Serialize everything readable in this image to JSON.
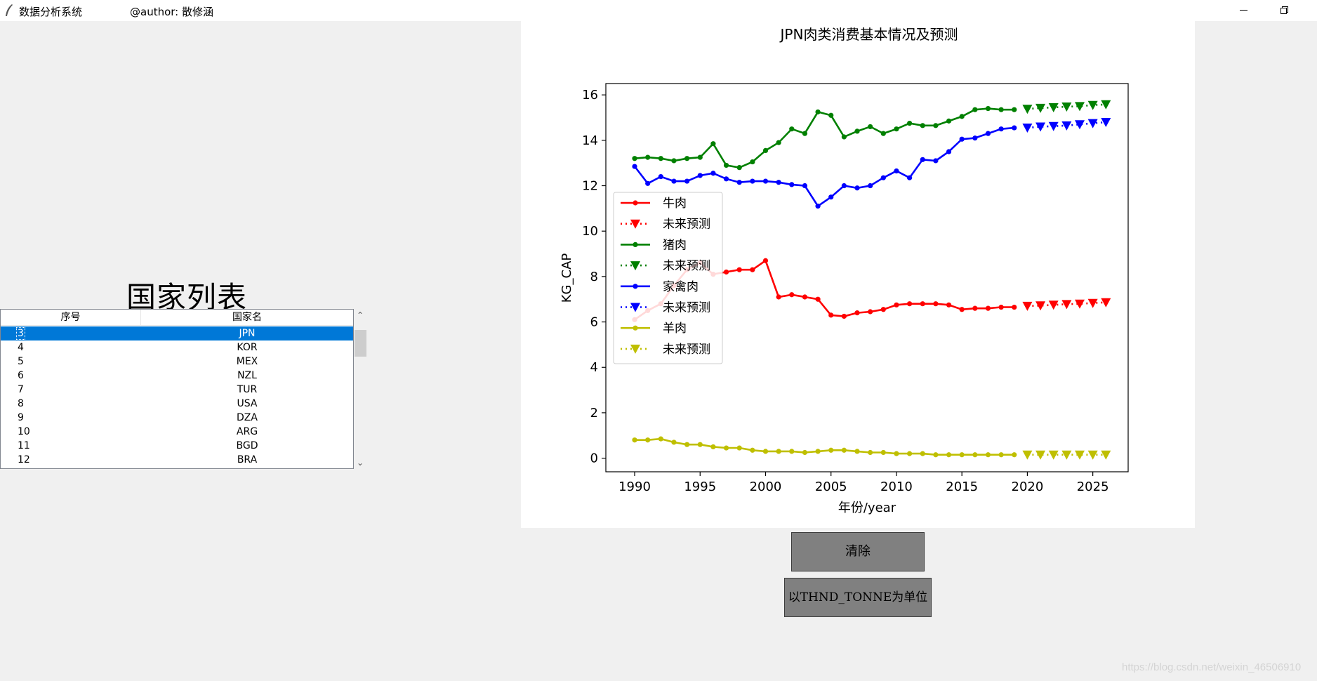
{
  "window": {
    "title": "数据分析系统",
    "author": "@author: 散修涵",
    "icon": "feather-icon"
  },
  "left": {
    "heading": "国家列表",
    "columns": [
      "序号",
      "国家名"
    ],
    "rows": [
      {
        "index": "3",
        "name": "JPN"
      },
      {
        "index": "4",
        "name": "KOR"
      },
      {
        "index": "5",
        "name": "MEX"
      },
      {
        "index": "6",
        "name": "NZL"
      },
      {
        "index": "7",
        "name": "TUR"
      },
      {
        "index": "8",
        "name": "USA"
      },
      {
        "index": "9",
        "name": "DZA"
      },
      {
        "index": "10",
        "name": "ARG"
      },
      {
        "index": "11",
        "name": "BGD"
      },
      {
        "index": "12",
        "name": "BRA"
      }
    ],
    "selected_index": "3",
    "selection_color": "#0078d7"
  },
  "buttons": {
    "clear": "清除",
    "unit": "以THND_TONNE为单位"
  },
  "watermark": "https://blog.csdn.net/weixin_46506910",
  "chart_data": {
    "type": "line",
    "title": "JPN肉类消费基本情况及预测",
    "xlabel": "年份/year",
    "ylabel": "KG_CAP",
    "xlim": [
      1987.8,
      2027.7
    ],
    "ylim": [
      -0.6,
      16.5
    ],
    "xticks": [
      1990,
      1995,
      2000,
      2005,
      2010,
      2015,
      2020,
      2025
    ],
    "yticks": [
      0,
      2,
      4,
      6,
      8,
      10,
      12,
      14,
      16
    ],
    "legend_position": "center-left",
    "grid": false,
    "series": [
      {
        "name": "牛肉",
        "kind": "actual",
        "color": "#ff0000",
        "x": [
          1990,
          1991,
          1992,
          1993,
          1994,
          1995,
          1996,
          1997,
          1998,
          1999,
          2000,
          2001,
          2002,
          2003,
          2004,
          2005,
          2006,
          2007,
          2008,
          2009,
          2010,
          2011,
          2012,
          2013,
          2014,
          2015,
          2016,
          2017,
          2018,
          2019
        ],
        "values": [
          6.1,
          6.5,
          6.8,
          7.6,
          8.3,
          8.6,
          8.1,
          8.2,
          8.3,
          8.3,
          8.7,
          7.1,
          7.2,
          7.1,
          7.0,
          6.3,
          6.25,
          6.4,
          6.45,
          6.55,
          6.75,
          6.8,
          6.8,
          6.8,
          6.75,
          6.55,
          6.6,
          6.6,
          6.65,
          6.65
        ]
      },
      {
        "name": "未来预测",
        "kind": "forecast",
        "color": "#ff0000",
        "x": [
          2020,
          2021,
          2022,
          2023,
          2024,
          2025,
          2026
        ],
        "values": [
          6.7,
          6.72,
          6.75,
          6.78,
          6.8,
          6.83,
          6.86
        ]
      },
      {
        "name": "猪肉",
        "kind": "actual",
        "color": "#008000",
        "x": [
          1990,
          1991,
          1992,
          1993,
          1994,
          1995,
          1996,
          1997,
          1998,
          1999,
          2000,
          2001,
          2002,
          2003,
          2004,
          2005,
          2006,
          2007,
          2008,
          2009,
          2010,
          2011,
          2012,
          2013,
          2014,
          2015,
          2016,
          2017,
          2018,
          2019
        ],
        "values": [
          13.2,
          13.25,
          13.2,
          13.1,
          13.2,
          13.25,
          13.85,
          12.9,
          12.8,
          13.05,
          13.55,
          13.9,
          14.5,
          14.3,
          15.25,
          15.1,
          14.15,
          14.4,
          14.6,
          14.3,
          14.5,
          14.75,
          14.65,
          14.65,
          14.85,
          15.05,
          15.35,
          15.4,
          15.35,
          15.35
        ]
      },
      {
        "name": "未来预测",
        "kind": "forecast",
        "color": "#008000",
        "x": [
          2020,
          2021,
          2022,
          2023,
          2024,
          2025,
          2026
        ],
        "values": [
          15.38,
          15.42,
          15.45,
          15.48,
          15.5,
          15.55,
          15.58
        ]
      },
      {
        "name": "家禽肉",
        "kind": "actual",
        "color": "#0000ff",
        "x": [
          1990,
          1991,
          1992,
          1993,
          1994,
          1995,
          1996,
          1997,
          1998,
          1999,
          2000,
          2001,
          2002,
          2003,
          2004,
          2005,
          2006,
          2007,
          2008,
          2009,
          2010,
          2011,
          2012,
          2013,
          2014,
          2015,
          2016,
          2017,
          2018,
          2019
        ],
        "values": [
          12.85,
          12.1,
          12.4,
          12.2,
          12.2,
          12.45,
          12.55,
          12.3,
          12.15,
          12.2,
          12.2,
          12.15,
          12.05,
          12.0,
          11.1,
          11.5,
          12.0,
          11.9,
          12.0,
          12.35,
          12.65,
          12.35,
          13.15,
          13.1,
          13.5,
          14.05,
          14.1,
          14.3,
          14.5,
          14.55
        ]
      },
      {
        "name": "未来预测",
        "kind": "forecast",
        "color": "#0000ff",
        "x": [
          2020,
          2021,
          2022,
          2023,
          2024,
          2025,
          2026
        ],
        "values": [
          14.55,
          14.6,
          14.62,
          14.65,
          14.7,
          14.75,
          14.8
        ]
      },
      {
        "name": "羊肉",
        "kind": "actual",
        "color": "#bfbf00",
        "x": [
          1990,
          1991,
          1992,
          1993,
          1994,
          1995,
          1996,
          1997,
          1998,
          1999,
          2000,
          2001,
          2002,
          2003,
          2004,
          2005,
          2006,
          2007,
          2008,
          2009,
          2010,
          2011,
          2012,
          2013,
          2014,
          2015,
          2016,
          2017,
          2018,
          2019
        ],
        "values": [
          0.8,
          0.8,
          0.85,
          0.7,
          0.6,
          0.6,
          0.5,
          0.45,
          0.45,
          0.35,
          0.3,
          0.3,
          0.3,
          0.25,
          0.3,
          0.35,
          0.35,
          0.3,
          0.25,
          0.25,
          0.2,
          0.2,
          0.2,
          0.15,
          0.15,
          0.15,
          0.15,
          0.15,
          0.15,
          0.15
        ]
      },
      {
        "name": "未来预测",
        "kind": "forecast",
        "color": "#bfbf00",
        "x": [
          2020,
          2021,
          2022,
          2023,
          2024,
          2025,
          2026
        ],
        "values": [
          0.15,
          0.15,
          0.15,
          0.15,
          0.15,
          0.15,
          0.15
        ]
      }
    ]
  }
}
